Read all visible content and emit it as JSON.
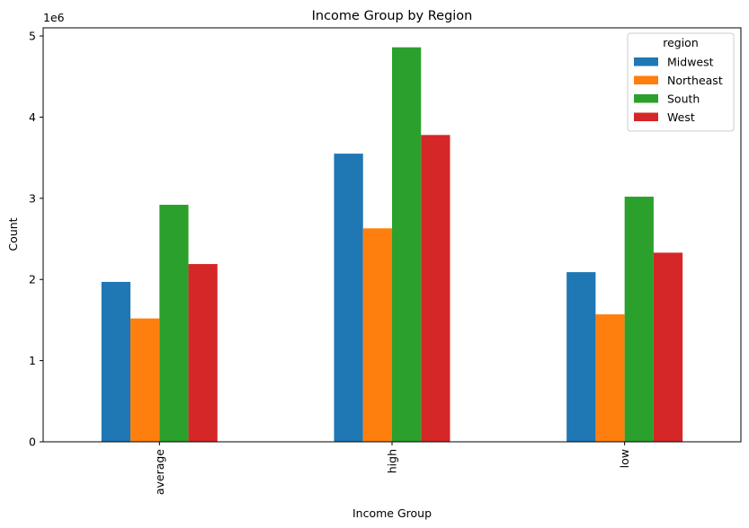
{
  "chart_data": {
    "type": "bar",
    "title": "Income Group by Region",
    "xlabel": "Income Group",
    "ylabel": "Count",
    "y_offset_label": "1e6",
    "y_scale": 1000000,
    "ylim": [
      0,
      5100000
    ],
    "y_ticks": [
      0,
      1000000,
      2000000,
      3000000,
      4000000,
      5000000
    ],
    "y_tick_labels": [
      "0",
      "1",
      "2",
      "3",
      "4",
      "5"
    ],
    "categories": [
      "average",
      "high",
      "low"
    ],
    "legend": {
      "title": "region",
      "placement": "top-right"
    },
    "grid": false,
    "series": [
      {
        "name": "Midwest",
        "color": "#1f77b4",
        "values": [
          1970000,
          3550000,
          2090000
        ]
      },
      {
        "name": "Northeast",
        "color": "#ff7f0e",
        "values": [
          1520000,
          2630000,
          1570000
        ]
      },
      {
        "name": "South",
        "color": "#2ca02c",
        "values": [
          2920000,
          4860000,
          3020000
        ]
      },
      {
        "name": "West",
        "color": "#d62728",
        "values": [
          2190000,
          3780000,
          2330000
        ]
      }
    ]
  }
}
